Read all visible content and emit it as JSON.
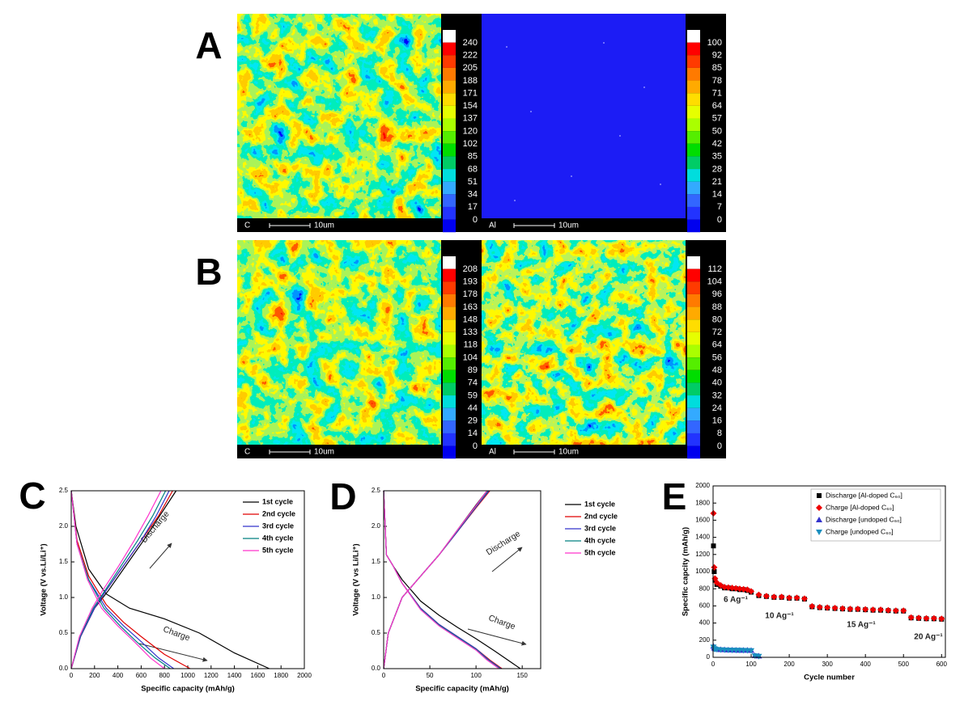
{
  "maps": [
    {
      "panel": "A",
      "images": [
        {
          "element": "C",
          "scale": "10um",
          "colorbar": [
            240,
            222,
            205,
            188,
            171,
            154,
            137,
            120,
            102,
            85,
            68,
            51,
            34,
            17,
            0
          ]
        },
        {
          "element": "Al",
          "scale": "10um",
          "colorbar": [
            100,
            92,
            85,
            78,
            71,
            64,
            57,
            50,
            42,
            35,
            28,
            21,
            14,
            7,
            0
          ]
        }
      ]
    },
    {
      "panel": "B",
      "images": [
        {
          "element": "C",
          "scale": "10um",
          "colorbar": [
            208,
            193,
            178,
            163,
            148,
            133,
            118,
            104,
            89,
            74,
            59,
            44,
            29,
            14,
            0
          ]
        },
        {
          "element": "Al",
          "scale": "10um",
          "colorbar": [
            112,
            104,
            96,
            88,
            80,
            72,
            64,
            56,
            48,
            40,
            32,
            24,
            16,
            8,
            0
          ]
        }
      ]
    }
  ],
  "chart_data": [
    {
      "type": "line",
      "panel": "C",
      "xlabel": "Specific capacity (mAh/g)",
      "ylabel": "Voltage (V vs.Li/Li⁺)",
      "xlim": [
        0,
        2000
      ],
      "xticks": [
        0,
        200,
        400,
        600,
        800,
        1000,
        1200,
        1400,
        1600,
        1800,
        2000
      ],
      "ylim": [
        0,
        2.5
      ],
      "yticks": [
        {
          "value": 0,
          "label": "0.0"
        },
        0.5,
        {
          "value": 1,
          "label": "1.0"
        },
        1.5,
        {
          "value": 2,
          "label": "2.0"
        },
        2.5
      ],
      "annotations": [
        "Discharge",
        "Charge"
      ],
      "series": [
        {
          "name": "1st cycle",
          "color": "#000000",
          "x": [
            0,
            40,
            150,
            300,
            500,
            800,
            1100,
            1400,
            1700,
            null,
            0,
            80,
            200,
            320,
            470,
            620,
            760,
            900
          ],
          "values": [
            2.5,
            2.0,
            1.4,
            1.05,
            0.85,
            0.7,
            0.5,
            0.22,
            0,
            null,
            0,
            0.45,
            0.85,
            1.1,
            1.45,
            1.8,
            2.15,
            2.5
          ]
        },
        {
          "name": "2nd cycle",
          "color": "#e00000",
          "x": [
            0,
            50,
            150,
            300,
            450,
            600,
            800,
            1020,
            null,
            0,
            80,
            200,
            300,
            450,
            600,
            750,
            870
          ],
          "values": [
            2.5,
            1.8,
            1.3,
            0.9,
            0.65,
            0.45,
            0.2,
            0,
            null,
            0,
            0.45,
            0.85,
            1.1,
            1.45,
            1.8,
            2.15,
            2.5
          ]
        },
        {
          "name": "3rd cycle",
          "color": "#3333cc",
          "x": [
            0,
            50,
            150,
            300,
            450,
            600,
            750,
            880,
            null,
            0,
            80,
            200,
            300,
            450,
            600,
            730,
            840
          ],
          "values": [
            2.5,
            1.75,
            1.25,
            0.85,
            0.6,
            0.38,
            0.15,
            0,
            null,
            0,
            0.45,
            0.85,
            1.1,
            1.45,
            1.8,
            2.15,
            2.5
          ]
        },
        {
          "name": "4th cycle",
          "color": "#008080",
          "x": [
            0,
            50,
            150,
            280,
            420,
            560,
            720,
            850,
            null,
            0,
            75,
            190,
            290,
            430,
            570,
            700,
            810
          ],
          "values": [
            2.5,
            1.75,
            1.25,
            0.85,
            0.6,
            0.38,
            0.15,
            0,
            null,
            0,
            0.45,
            0.85,
            1.1,
            1.45,
            1.8,
            2.15,
            2.5
          ]
        },
        {
          "name": "5th cycle",
          "color": "#ff33cc",
          "x": [
            0,
            50,
            140,
            260,
            400,
            540,
            680,
            800,
            null,
            0,
            70,
            180,
            270,
            410,
            540,
            660,
            770
          ],
          "values": [
            2.5,
            1.75,
            1.25,
            0.85,
            0.6,
            0.38,
            0.15,
            0,
            null,
            0,
            0.45,
            0.85,
            1.1,
            1.45,
            1.8,
            2.15,
            2.5
          ]
        }
      ]
    },
    {
      "type": "line",
      "panel": "D",
      "xlabel": "Specific capacity (mAh/g)",
      "ylabel": "Voltage (V vs Li/Li⁺)",
      "xlim": [
        0,
        170
      ],
      "xticks": [
        0,
        50,
        100,
        150
      ],
      "ylim": [
        0,
        2.5
      ],
      "yticks": [
        {
          "value": 0,
          "label": "0.0"
        },
        0.5,
        {
          "value": 1,
          "label": "1.0"
        },
        1.5,
        {
          "value": 2,
          "label": "2.0"
        },
        2.5
      ],
      "annotations": [
        "Discharge",
        "Charge"
      ],
      "series": [
        {
          "name": "1st cycle",
          "color": "#000000",
          "x": [
            0,
            3,
            10,
            20,
            40,
            60,
            80,
            100,
            120,
            148,
            null,
            0,
            5,
            20,
            40,
            60,
            80,
            100,
            112
          ],
          "values": [
            2.5,
            1.6,
            1.45,
            1.25,
            0.95,
            0.75,
            0.58,
            0.42,
            0.25,
            0,
            null,
            0,
            0.5,
            1.0,
            1.3,
            1.6,
            1.95,
            2.3,
            2.5
          ]
        },
        {
          "name": "2nd cycle",
          "color": "#e00000",
          "x": [
            0,
            3,
            10,
            20,
            40,
            60,
            80,
            100,
            115,
            128,
            null,
            0,
            5,
            20,
            40,
            60,
            80,
            100,
            115
          ],
          "values": [
            2.5,
            1.6,
            1.45,
            1.2,
            0.85,
            0.62,
            0.45,
            0.28,
            0.12,
            0,
            null,
            0,
            0.5,
            1.0,
            1.3,
            1.6,
            1.93,
            2.26,
            2.5
          ]
        },
        {
          "name": "3rd cycle",
          "color": "#3333cc",
          "x": [
            0,
            3,
            10,
            20,
            40,
            60,
            80,
            100,
            114,
            127,
            null,
            0,
            5,
            20,
            40,
            60,
            80,
            100,
            114
          ],
          "values": [
            2.5,
            1.6,
            1.45,
            1.2,
            0.85,
            0.62,
            0.45,
            0.28,
            0.12,
            0,
            null,
            0,
            0.5,
            1.0,
            1.3,
            1.6,
            1.93,
            2.27,
            2.5
          ]
        },
        {
          "name": "4th cycle",
          "color": "#008080",
          "x": [
            0,
            3,
            10,
            20,
            40,
            60,
            80,
            100,
            113,
            126,
            null,
            0,
            5,
            20,
            40,
            60,
            80,
            100,
            113
          ],
          "values": [
            2.5,
            1.6,
            1.45,
            1.2,
            0.84,
            0.61,
            0.44,
            0.27,
            0.12,
            0,
            null,
            0,
            0.5,
            1.0,
            1.3,
            1.6,
            1.94,
            2.28,
            2.5
          ]
        },
        {
          "name": "5th cycle",
          "color": "#ff33cc",
          "x": [
            0,
            3,
            10,
            20,
            40,
            60,
            80,
            100,
            112,
            125,
            null,
            0,
            5,
            20,
            40,
            60,
            80,
            100,
            112
          ],
          "values": [
            2.5,
            1.6,
            1.45,
            1.2,
            0.83,
            0.6,
            0.43,
            0.26,
            0.12,
            0,
            null,
            0,
            0.5,
            1.0,
            1.3,
            1.6,
            1.95,
            2.29,
            2.5
          ]
        }
      ]
    },
    {
      "type": "scatter",
      "panel": "E",
      "xlabel": "Cycle number",
      "ylabel": "Specific capcity (mAh/g)",
      "xlim": [
        0,
        610
      ],
      "xticks": [
        0,
        100,
        200,
        300,
        400,
        500,
        600
      ],
      "ylim": [
        0,
        2000
      ],
      "yticks": [
        0,
        200,
        400,
        600,
        800,
        1000,
        1200,
        1400,
        1600,
        1800,
        2000
      ],
      "annotations": [
        "6 Ag⁻¹",
        "10 Ag⁻¹",
        "15 Ag⁻¹",
        "20 Ag⁻¹"
      ],
      "series": [
        {
          "name": "Discharge [Al-doped C₆₀]",
          "color": "#000000",
          "marker": "square",
          "x": [
            1,
            3,
            5,
            10,
            20,
            30,
            40,
            50,
            60,
            70,
            80,
            90,
            100,
            120,
            140,
            160,
            180,
            200,
            220,
            240,
            260,
            280,
            300,
            320,
            340,
            360,
            380,
            400,
            420,
            440,
            460,
            480,
            500,
            520,
            540,
            560,
            580,
            600
          ],
          "values": [
            1300,
            1000,
            900,
            850,
            830,
            810,
            810,
            800,
            800,
            790,
            790,
            780,
            760,
            720,
            710,
            700,
            700,
            690,
            690,
            680,
            590,
            580,
            575,
            570,
            565,
            560,
            560,
            555,
            550,
            550,
            545,
            540,
            540,
            460,
            455,
            450,
            450,
            445
          ]
        },
        {
          "name": "Charge [Al-doped C₆₀]",
          "color": "#ee0000",
          "marker": "diamond",
          "x": [
            1,
            3,
            5,
            10,
            20,
            30,
            40,
            50,
            60,
            70,
            80,
            90,
            100,
            120,
            140,
            160,
            180,
            200,
            220,
            240,
            260,
            280,
            300,
            320,
            340,
            360,
            380,
            400,
            420,
            440,
            460,
            480,
            500,
            520,
            540,
            560,
            580,
            600
          ],
          "values": [
            1680,
            1050,
            920,
            870,
            840,
            820,
            815,
            810,
            805,
            800,
            795,
            790,
            770,
            730,
            715,
            705,
            705,
            695,
            695,
            685,
            595,
            585,
            580,
            575,
            570,
            565,
            565,
            560,
            555,
            555,
            550,
            545,
            545,
            465,
            460,
            455,
            455,
            450
          ]
        },
        {
          "name": "Discharge [undoped C₆₀]",
          "color": "#3333cc",
          "marker": "triangle-up",
          "x": [
            1,
            3,
            5,
            10,
            20,
            30,
            40,
            50,
            60,
            70,
            80,
            90,
            100,
            110,
            120
          ],
          "values": [
            130,
            110,
            100,
            95,
            90,
            88,
            86,
            85,
            84,
            83,
            82,
            82,
            80,
            20,
            15
          ]
        },
        {
          "name": "Charge [undoped C₆₀]",
          "color": "#1a8fbf",
          "marker": "triangle-down",
          "x": [
            1,
            3,
            5,
            10,
            20,
            30,
            40,
            50,
            60,
            70,
            80,
            90,
            100,
            110,
            120
          ],
          "values": [
            120,
            100,
            95,
            92,
            88,
            86,
            85,
            84,
            83,
            82,
            81,
            80,
            78,
            18,
            12
          ]
        }
      ]
    }
  ]
}
